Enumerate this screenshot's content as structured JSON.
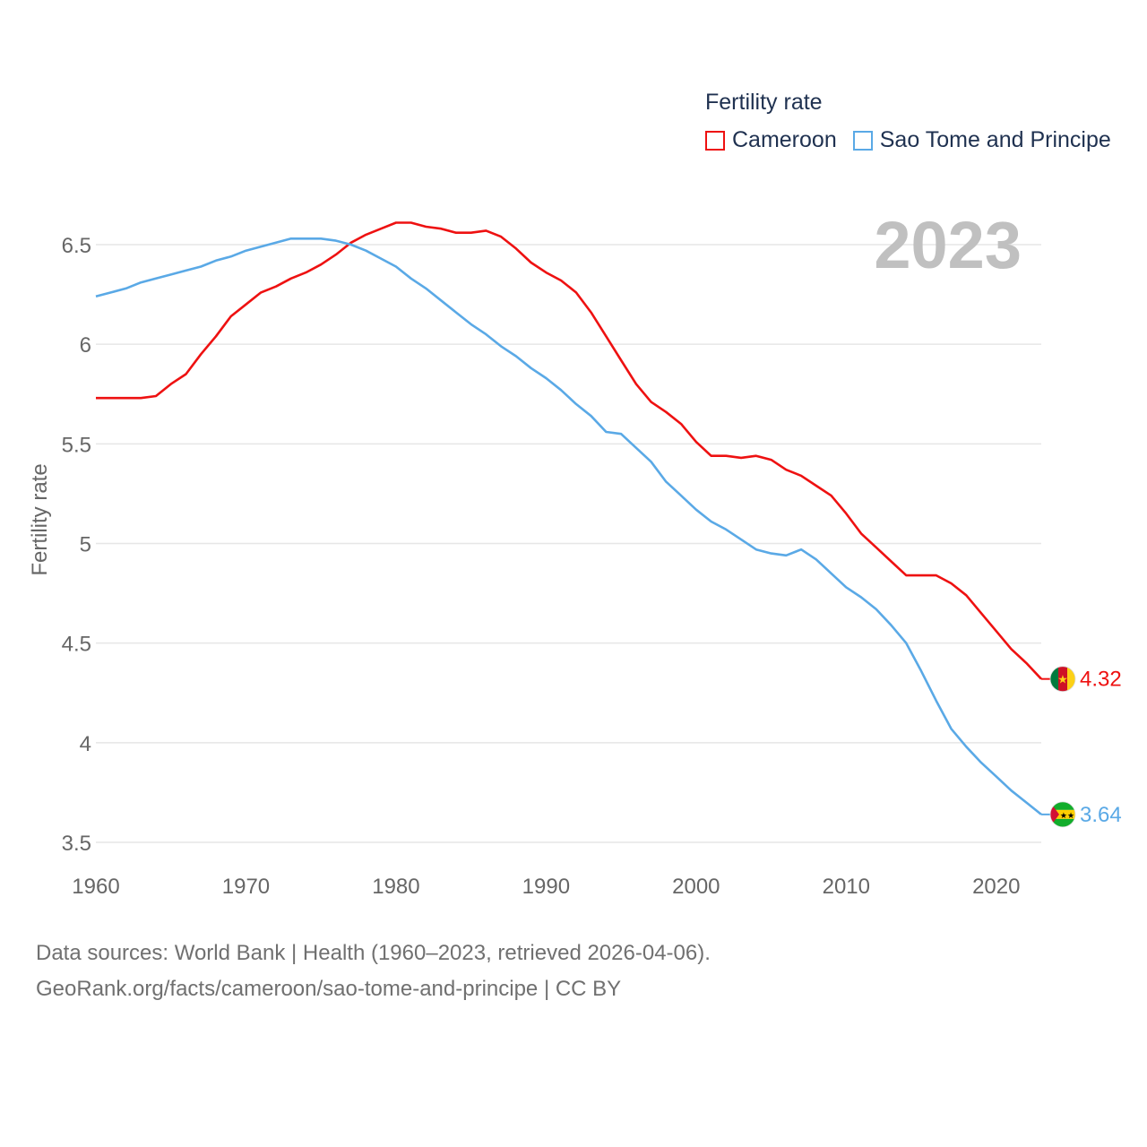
{
  "legend": {
    "title": "Fertility rate"
  },
  "footer": {
    "line1": "Data sources: World Bank | Health (1960–2023, retrieved 2026-04-06).",
    "line2": "GeoRank.org/facts/cameroon/sao-tome-and-principe | CC BY"
  },
  "chart_data": {
    "type": "line",
    "title": "Fertility rate",
    "year_label": "2023",
    "xlabel": "",
    "ylabel": "Fertility rate",
    "xlim": [
      1960,
      2023
    ],
    "ylim": [
      3.5,
      6.72
    ],
    "x_ticks": [
      1960,
      1970,
      1980,
      1990,
      2000,
      2010,
      2020
    ],
    "y_ticks": [
      3.5,
      4,
      4.5,
      5,
      5.5,
      6,
      6.5
    ],
    "y_tick_labels": [
      "3.5",
      "4",
      "4.5",
      "5",
      "5.5",
      "6",
      "6.5"
    ],
    "grid": true,
    "legend_position": "top-right",
    "x": [
      1960,
      1961,
      1962,
      1963,
      1964,
      1965,
      1966,
      1967,
      1968,
      1969,
      1970,
      1971,
      1972,
      1973,
      1974,
      1975,
      1976,
      1977,
      1978,
      1979,
      1980,
      1981,
      1982,
      1983,
      1984,
      1985,
      1986,
      1987,
      1988,
      1989,
      1990,
      1991,
      1992,
      1993,
      1994,
      1995,
      1996,
      1997,
      1998,
      1999,
      2000,
      2001,
      2002,
      2003,
      2004,
      2005,
      2006,
      2007,
      2008,
      2009,
      2010,
      2011,
      2012,
      2013,
      2014,
      2015,
      2016,
      2017,
      2018,
      2019,
      2020,
      2021,
      2022,
      2023
    ],
    "series": [
      {
        "name": "Cameroon",
        "color": "#ee1111",
        "end_label": "4.32",
        "flag": "cameroon-flag",
        "values": [
          5.73,
          5.73,
          5.73,
          5.73,
          5.74,
          5.8,
          5.85,
          5.95,
          6.04,
          6.14,
          6.2,
          6.26,
          6.29,
          6.33,
          6.36,
          6.4,
          6.45,
          6.51,
          6.55,
          6.58,
          6.61,
          6.61,
          6.59,
          6.58,
          6.56,
          6.56,
          6.57,
          6.54,
          6.48,
          6.41,
          6.36,
          6.32,
          6.26,
          6.16,
          6.04,
          5.92,
          5.8,
          5.71,
          5.66,
          5.6,
          5.51,
          5.44,
          5.44,
          5.43,
          5.44,
          5.42,
          5.37,
          5.34,
          5.29,
          5.24,
          5.15,
          5.05,
          4.98,
          4.91,
          4.84,
          4.84,
          4.84,
          4.8,
          4.74,
          4.65,
          4.56,
          4.47,
          4.4,
          4.32
        ]
      },
      {
        "name": "Sao Tome and Principe",
        "color": "#5aa9e6",
        "end_label": "3.64",
        "flag": "sao-tome-flag",
        "values": [
          6.24,
          6.26,
          6.28,
          6.31,
          6.33,
          6.35,
          6.37,
          6.39,
          6.42,
          6.44,
          6.47,
          6.49,
          6.51,
          6.53,
          6.53,
          6.53,
          6.52,
          6.5,
          6.47,
          6.43,
          6.39,
          6.33,
          6.28,
          6.22,
          6.16,
          6.1,
          6.05,
          5.99,
          5.94,
          5.88,
          5.83,
          5.77,
          5.7,
          5.64,
          5.56,
          5.55,
          5.48,
          5.41,
          5.31,
          5.24,
          5.17,
          5.11,
          5.07,
          5.02,
          4.97,
          4.95,
          4.94,
          4.97,
          4.92,
          4.85,
          4.78,
          4.73,
          4.67,
          4.59,
          4.5,
          4.36,
          4.21,
          4.07,
          3.98,
          3.9,
          3.83,
          3.76,
          3.7,
          3.64
        ]
      }
    ]
  }
}
